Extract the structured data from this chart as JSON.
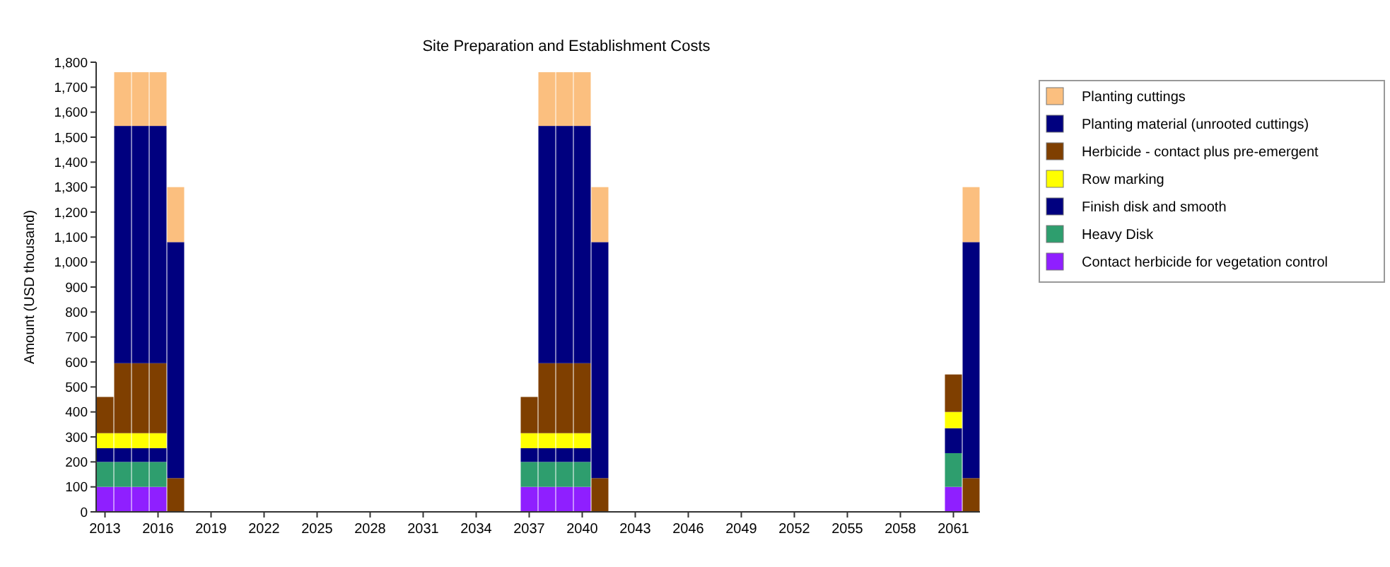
{
  "chart_data": {
    "type": "bar",
    "title": "Site Preparation and Establishment Costs",
    "ylabel": "Amount (USD thousand)",
    "stacked": true,
    "legend": "right",
    "grid": false,
    "categories": [
      "2013",
      null,
      null,
      "2016",
      null,
      null,
      "2019",
      null,
      null,
      "2022",
      null,
      null,
      "2025",
      null,
      null,
      "2028",
      null,
      null,
      "2031",
      null,
      null,
      "2034",
      null,
      null,
      "2037",
      null,
      null,
      "2040",
      null,
      null,
      "2043",
      null,
      null,
      "2046",
      null,
      null,
      "2049",
      null,
      null,
      "2052",
      null,
      null,
      "2055",
      null,
      null,
      "2058",
      null,
      null,
      "2061",
      null
    ],
    "ylim": [
      0,
      1800
    ],
    "yticks": [
      {
        "value": 0,
        "label": "0"
      },
      {
        "value": 100,
        "label": "100"
      },
      {
        "value": 200,
        "label": "200"
      },
      {
        "value": 300,
        "label": "300"
      },
      {
        "value": 400,
        "label": "400"
      },
      {
        "value": 500,
        "label": "500"
      },
      {
        "value": 600,
        "label": "600"
      },
      {
        "value": 700,
        "label": "700"
      },
      {
        "value": 800,
        "label": "800"
      },
      {
        "value": 900,
        "label": "900"
      },
      {
        "value": 1000,
        "label": "1,000"
      },
      {
        "value": 1100,
        "label": "1,100"
      },
      {
        "value": 1200,
        "label": "1,200"
      },
      {
        "value": 1300,
        "label": "1,300"
      },
      {
        "value": 1400,
        "label": "1,400"
      },
      {
        "value": 1500,
        "label": "1,500"
      },
      {
        "value": 1600,
        "label": "1,600"
      },
      {
        "value": 1700,
        "label": "1,700"
      },
      {
        "value": 1800,
        "label": "1,800"
      }
    ],
    "series": [
      {
        "name": "Contact herbicide for vegetation control",
        "color": "#8f1fff",
        "values": [
          100,
          100,
          100,
          100,
          0,
          0,
          0,
          0,
          0,
          0,
          0,
          0,
          0,
          0,
          0,
          0,
          0,
          0,
          0,
          0,
          0,
          0,
          0,
          0,
          100,
          100,
          100,
          100,
          0,
          0,
          0,
          0,
          0,
          0,
          0,
          0,
          0,
          0,
          0,
          0,
          0,
          0,
          0,
          0,
          0,
          0,
          0,
          0,
          100,
          0
        ]
      },
      {
        "name": "Heavy Disk",
        "color": "#2e9e6e",
        "values": [
          100,
          100,
          100,
          100,
          0,
          0,
          0,
          0,
          0,
          0,
          0,
          0,
          0,
          0,
          0,
          0,
          0,
          0,
          0,
          0,
          0,
          0,
          0,
          0,
          100,
          100,
          100,
          100,
          0,
          0,
          0,
          0,
          0,
          0,
          0,
          0,
          0,
          0,
          0,
          0,
          0,
          0,
          0,
          0,
          0,
          0,
          0,
          0,
          135,
          0
        ]
      },
      {
        "name": "Finish disk and smooth",
        "color": "#00007f",
        "values": [
          55,
          55,
          55,
          55,
          0,
          0,
          0,
          0,
          0,
          0,
          0,
          0,
          0,
          0,
          0,
          0,
          0,
          0,
          0,
          0,
          0,
          0,
          0,
          0,
          55,
          55,
          55,
          55,
          0,
          0,
          0,
          0,
          0,
          0,
          0,
          0,
          0,
          0,
          0,
          0,
          0,
          0,
          0,
          0,
          0,
          0,
          0,
          0,
          100,
          0
        ]
      },
      {
        "name": "Row marking",
        "color": "#ffff00",
        "values": [
          60,
          60,
          60,
          60,
          0,
          0,
          0,
          0,
          0,
          0,
          0,
          0,
          0,
          0,
          0,
          0,
          0,
          0,
          0,
          0,
          0,
          0,
          0,
          0,
          60,
          60,
          60,
          60,
          0,
          0,
          0,
          0,
          0,
          0,
          0,
          0,
          0,
          0,
          0,
          0,
          0,
          0,
          0,
          0,
          0,
          0,
          0,
          0,
          65,
          0
        ]
      },
      {
        "name": "Herbicide - contact plus pre-emergent",
        "color": "#7f3f00",
        "values": [
          145,
          280,
          280,
          280,
          135,
          0,
          0,
          0,
          0,
          0,
          0,
          0,
          0,
          0,
          0,
          0,
          0,
          0,
          0,
          0,
          0,
          0,
          0,
          0,
          145,
          280,
          280,
          280,
          135,
          0,
          0,
          0,
          0,
          0,
          0,
          0,
          0,
          0,
          0,
          0,
          0,
          0,
          0,
          0,
          0,
          0,
          0,
          0,
          150,
          135
        ]
      },
      {
        "name": "Planting material (unrooted cuttings)",
        "color": "#00007f",
        "values": [
          0,
          950,
          950,
          950,
          945,
          0,
          0,
          0,
          0,
          0,
          0,
          0,
          0,
          0,
          0,
          0,
          0,
          0,
          0,
          0,
          0,
          0,
          0,
          0,
          0,
          950,
          950,
          950,
          945,
          0,
          0,
          0,
          0,
          0,
          0,
          0,
          0,
          0,
          0,
          0,
          0,
          0,
          0,
          0,
          0,
          0,
          0,
          0,
          0,
          945
        ]
      },
      {
        "name": "Planting cuttings",
        "color": "#fbbf7f",
        "values": [
          0,
          215,
          215,
          215,
          220,
          0,
          0,
          0,
          0,
          0,
          0,
          0,
          0,
          0,
          0,
          0,
          0,
          0,
          0,
          0,
          0,
          0,
          0,
          0,
          0,
          215,
          215,
          215,
          220,
          0,
          0,
          0,
          0,
          0,
          0,
          0,
          0,
          0,
          0,
          0,
          0,
          0,
          0,
          0,
          0,
          0,
          0,
          0,
          0,
          220
        ]
      }
    ]
  }
}
